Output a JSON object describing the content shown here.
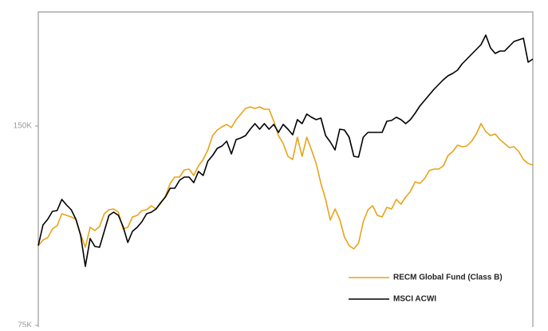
{
  "chart_data": {
    "type": "line",
    "scale": "linear",
    "legend": "bottom-right",
    "ylim": [
      74400,
      192900
    ],
    "yticks": [
      {
        "value": 75000,
        "label": "75K"
      },
      {
        "value": 150000,
        "label": "150K"
      }
    ],
    "series": [
      {
        "name": "RECM Global Fund (Class B)",
        "color": "#e8a317",
        "values": [
          105000,
          107100,
          108000,
          111300,
          112500,
          117000,
          116400,
          115800,
          114900,
          109200,
          104400,
          111900,
          110700,
          112200,
          117000,
          118500,
          118800,
          117600,
          111300,
          111900,
          115800,
          116400,
          118200,
          118500,
          120000,
          118800,
          120900,
          123600,
          128400,
          130800,
          130800,
          133500,
          133800,
          131400,
          135000,
          137400,
          141000,
          146400,
          148500,
          149700,
          150600,
          149400,
          152400,
          154500,
          156600,
          157200,
          156600,
          157200,
          156300,
          156300,
          151800,
          146400,
          143400,
          138600,
          137400,
          145800,
          138600,
          145800,
          141000,
          135900,
          128400,
          122400,
          114600,
          118800,
          114900,
          108300,
          105000,
          103800,
          105900,
          114000,
          118500,
          120000,
          116400,
          115800,
          119400,
          118800,
          122400,
          120600,
          123300,
          125400,
          129000,
          128400,
          130200,
          133200,
          133800,
          133800,
          135000,
          138900,
          140400,
          142800,
          142200,
          142500,
          144300,
          147000,
          150900,
          147900,
          146400,
          147000,
          144900,
          143400,
          141900,
          142200,
          140400,
          137400,
          135900,
          135300
        ]
      },
      {
        "name": "MSCI ACWI",
        "color": "#000000",
        "values": [
          105000,
          112800,
          114900,
          117900,
          118200,
          122400,
          120300,
          118500,
          114900,
          108900,
          97200,
          107700,
          104700,
          104400,
          110400,
          116400,
          117600,
          116400,
          112200,
          106200,
          110400,
          111900,
          114000,
          117000,
          117600,
          118800,
          121200,
          123300,
          126600,
          126600,
          129600,
          130800,
          130800,
          128700,
          132900,
          131400,
          136800,
          138900,
          141600,
          142500,
          144300,
          139500,
          144900,
          145500,
          146400,
          148800,
          150900,
          148800,
          150900,
          148800,
          150600,
          147600,
          150600,
          148800,
          146700,
          152400,
          150900,
          154500,
          153300,
          152400,
          153000,
          146400,
          144000,
          141000,
          148800,
          148500,
          145800,
          138600,
          138300,
          145800,
          147600,
          147600,
          147600,
          147600,
          151800,
          152100,
          153300,
          152400,
          150900,
          152400,
          154800,
          157500,
          159600,
          161700,
          163800,
          165600,
          167400,
          168900,
          169800,
          171000,
          173400,
          175200,
          177000,
          178800,
          180600,
          184200,
          179400,
          177300,
          178200,
          178200,
          180000,
          181800,
          182400,
          183000,
          174000,
          175200
        ]
      }
    ]
  }
}
